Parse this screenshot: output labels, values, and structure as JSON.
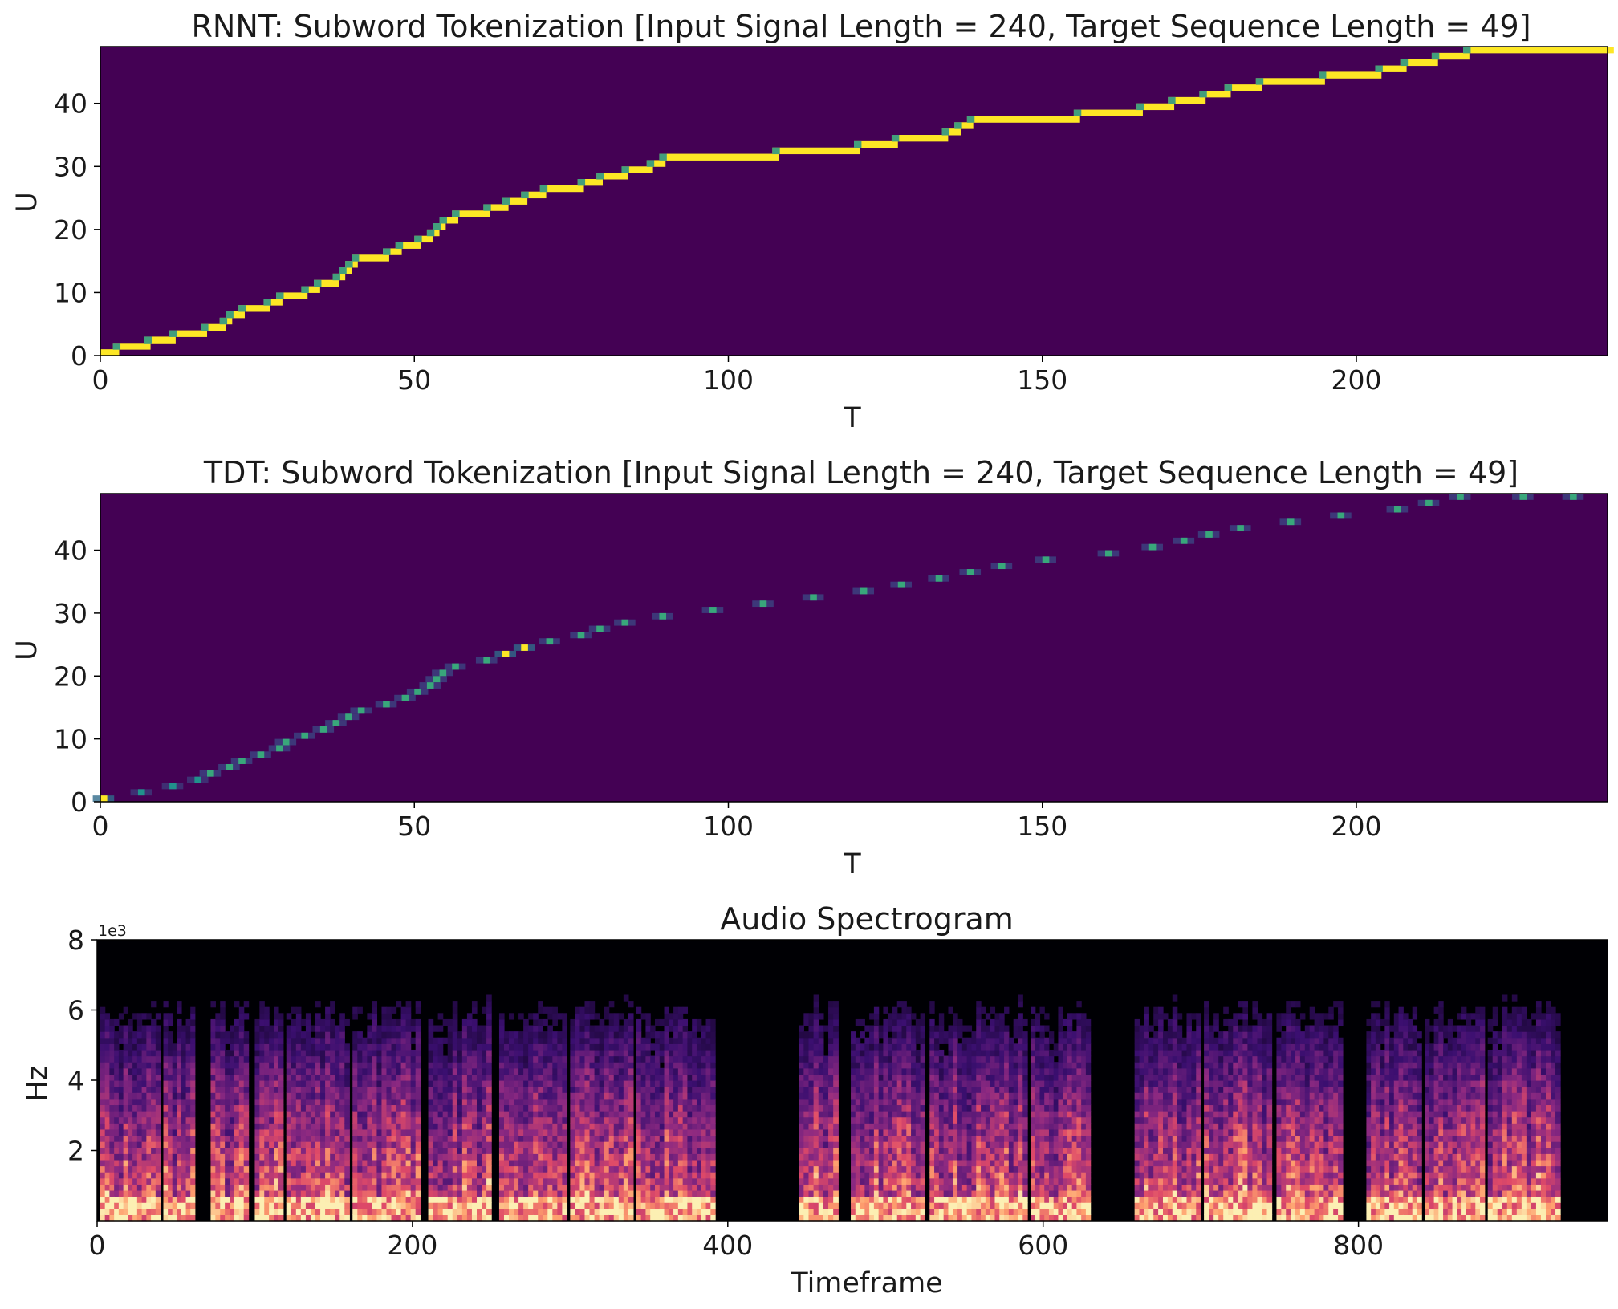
{
  "chart_data": [
    {
      "type": "heatmap",
      "title": "RNNT: Subword Tokenization [Input Signal Length = 240, Target Sequence Length = 49]",
      "xlabel": "T",
      "ylabel": "U",
      "xlim": [
        0,
        240
      ],
      "ylim": [
        0,
        49
      ],
      "xticks": [
        0,
        50,
        100,
        150,
        200
      ],
      "yticks": [
        0,
        10,
        20,
        30,
        40
      ],
      "colormap": "viridis",
      "background_color": "#440154",
      "peak_color": "#fde725",
      "mid_color": "#21918c",
      "path": [
        [
          0,
          0
        ],
        [
          2,
          1
        ],
        [
          7,
          2
        ],
        [
          11,
          3
        ],
        [
          16,
          4
        ],
        [
          19,
          5
        ],
        [
          20,
          6
        ],
        [
          22,
          7
        ],
        [
          26,
          8
        ],
        [
          28,
          9
        ],
        [
          32,
          10
        ],
        [
          34,
          11
        ],
        [
          37,
          12
        ],
        [
          38,
          13
        ],
        [
          39,
          14
        ],
        [
          40,
          15
        ],
        [
          45,
          16
        ],
        [
          47,
          17
        ],
        [
          50,
          18
        ],
        [
          52,
          19
        ],
        [
          53,
          20
        ],
        [
          54,
          21
        ],
        [
          56,
          22
        ],
        [
          61,
          23
        ],
        [
          64,
          24
        ],
        [
          67,
          25
        ],
        [
          70,
          26
        ],
        [
          76,
          27
        ],
        [
          79,
          28
        ],
        [
          83,
          29
        ],
        [
          87,
          30
        ],
        [
          89,
          31
        ],
        [
          107,
          32
        ],
        [
          120,
          33
        ],
        [
          126,
          34
        ],
        [
          134,
          35
        ],
        [
          136,
          36
        ],
        [
          138,
          37
        ],
        [
          155,
          38
        ],
        [
          165,
          39
        ],
        [
          170,
          40
        ],
        [
          175,
          41
        ],
        [
          179,
          42
        ],
        [
          184,
          43
        ],
        [
          194,
          44
        ],
        [
          203,
          45
        ],
        [
          207,
          46
        ],
        [
          212,
          47
        ],
        [
          217,
          48
        ]
      ]
    },
    {
      "type": "heatmap",
      "title": "TDT: Subword Tokenization [Input Signal Length = 240, Target Sequence Length = 49]",
      "xlabel": "T",
      "ylabel": "U",
      "xlim": [
        0,
        240
      ],
      "ylim": [
        0,
        49
      ],
      "xticks": [
        0,
        50,
        100,
        150,
        200
      ],
      "yticks": [
        0,
        10,
        20,
        30,
        40
      ],
      "colormap": "viridis",
      "background_color": "#440154",
      "points": [
        [
          0,
          0,
          1.0
        ],
        [
          6,
          1,
          0.5
        ],
        [
          11,
          2,
          0.5
        ],
        [
          15,
          3,
          0.5
        ],
        [
          17,
          4,
          0.6
        ],
        [
          20,
          5,
          0.6
        ],
        [
          22,
          6,
          0.6
        ],
        [
          25,
          7,
          0.6
        ],
        [
          28,
          8,
          0.6
        ],
        [
          29,
          9,
          0.6
        ],
        [
          32,
          10,
          0.6
        ],
        [
          35,
          11,
          0.6
        ],
        [
          37,
          12,
          0.6
        ],
        [
          39,
          13,
          0.6
        ],
        [
          41,
          14,
          0.6
        ],
        [
          45,
          15,
          0.6
        ],
        [
          48,
          16,
          0.6
        ],
        [
          50,
          17,
          0.6
        ],
        [
          52,
          18,
          0.6
        ],
        [
          53,
          19,
          0.6
        ],
        [
          54,
          20,
          0.6
        ],
        [
          56,
          21,
          0.6
        ],
        [
          61,
          22,
          0.6
        ],
        [
          64,
          23,
          1.0
        ],
        [
          67,
          24,
          1.0
        ],
        [
          71,
          25,
          0.6
        ],
        [
          76,
          26,
          0.6
        ],
        [
          79,
          27,
          0.6
        ],
        [
          83,
          28,
          0.6
        ],
        [
          89,
          29,
          0.6
        ],
        [
          97,
          30,
          0.6
        ],
        [
          105,
          31,
          0.6
        ],
        [
          113,
          32,
          0.6
        ],
        [
          121,
          33,
          0.6
        ],
        [
          127,
          34,
          0.6
        ],
        [
          133,
          35,
          0.6
        ],
        [
          138,
          36,
          0.6
        ],
        [
          143,
          37,
          0.6
        ],
        [
          150,
          38,
          0.6
        ],
        [
          160,
          39,
          0.6
        ],
        [
          167,
          40,
          0.6
        ],
        [
          172,
          41,
          0.6
        ],
        [
          176,
          42,
          0.6
        ],
        [
          181,
          43,
          0.6
        ],
        [
          189,
          44,
          0.6
        ],
        [
          197,
          45,
          0.6
        ],
        [
          206,
          46,
          0.6
        ],
        [
          211,
          47,
          0.6
        ],
        [
          216,
          48,
          0.6
        ],
        [
          226,
          49,
          0.6
        ],
        [
          234,
          49,
          0.6
        ]
      ]
    },
    {
      "type": "heatmap",
      "title": "Audio Spectrogram",
      "xlabel": "Timeframe",
      "ylabel": "Hz",
      "xlim": [
        0,
        958
      ],
      "ylim": [
        0,
        8000
      ],
      "xticks": [
        0,
        200,
        400,
        600,
        800
      ],
      "yticks": [
        2,
        4,
        6,
        8
      ],
      "y_scale_label": "1e3",
      "colormap": "magma",
      "background_color": "#000004",
      "speech_segments": [
        [
          2,
          40
        ],
        [
          42,
          62
        ],
        [
          72,
          96
        ],
        [
          100,
          118
        ],
        [
          120,
          160
        ],
        [
          162,
          205
        ],
        [
          210,
          250
        ],
        [
          255,
          298
        ],
        [
          300,
          340
        ],
        [
          342,
          392
        ],
        [
          445,
          470
        ],
        [
          478,
          525
        ],
        [
          528,
          590
        ],
        [
          592,
          630
        ],
        [
          658,
          700
        ],
        [
          702,
          745
        ],
        [
          748,
          790
        ],
        [
          805,
          840
        ],
        [
          842,
          880
        ],
        [
          882,
          928
        ]
      ]
    }
  ]
}
